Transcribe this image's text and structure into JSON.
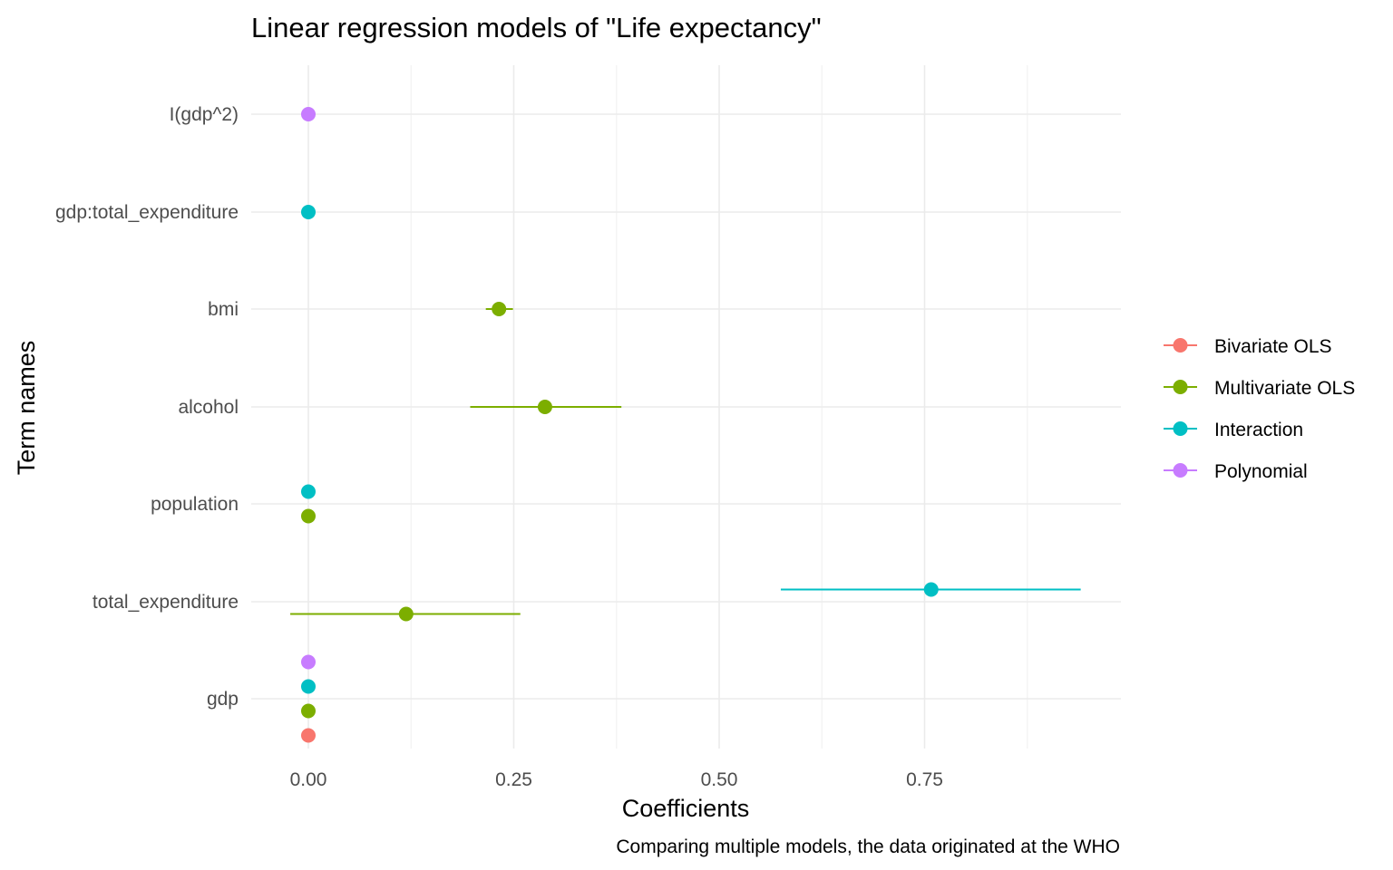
{
  "chart_data": {
    "type": "scatter",
    "subtype": "coefficient-plot-with-error-bars",
    "title": "Linear regression models of \"Life expectancy\"",
    "xlabel": "Coefficients",
    "ylabel": "Term names",
    "caption": "Comparing multiple models, the data originated at the WHO",
    "xlim": [
      -0.07,
      0.985
    ],
    "x_ticks": [
      "0.00",
      "0.25",
      "0.50",
      "0.75"
    ],
    "x_tick_values": [
      0,
      0.25,
      0.5,
      0.75
    ],
    "categories": [
      "gdp",
      "total_expenditure",
      "population",
      "alcohol",
      "bmi",
      "gdp:total_expenditure",
      "I(gdp^2)"
    ],
    "grid": true,
    "legend_position": "right",
    "series": [
      {
        "name": "Bivariate OLS",
        "color": "#F8766D",
        "points": [
          {
            "term": "gdp",
            "estimate": 0.0,
            "low": 0.0,
            "high": 0.0
          }
        ]
      },
      {
        "name": "Multivariate OLS",
        "color": "#7CAE00",
        "points": [
          {
            "term": "gdp",
            "estimate": 0.0,
            "low": 0.0,
            "high": 0.0
          },
          {
            "term": "total_expenditure",
            "estimate": 0.119,
            "low": -0.022,
            "high": 0.258
          },
          {
            "term": "population",
            "estimate": 0.0,
            "low": 0.0,
            "high": 0.0
          },
          {
            "term": "alcohol",
            "estimate": 0.288,
            "low": 0.197,
            "high": 0.381
          },
          {
            "term": "bmi",
            "estimate": 0.232,
            "low": 0.216,
            "high": 0.249
          }
        ]
      },
      {
        "name": "Interaction",
        "color": "#00BFC4",
        "points": [
          {
            "term": "gdp",
            "estimate": 0.0,
            "low": 0.0,
            "high": 0.0
          },
          {
            "term": "total_expenditure",
            "estimate": 0.758,
            "low": 0.575,
            "high": 0.94
          },
          {
            "term": "population",
            "estimate": 0.0,
            "low": 0.0,
            "high": 0.0
          },
          {
            "term": "gdp:total_expenditure",
            "estimate": 0.0,
            "low": 0.0,
            "high": 0.0
          }
        ]
      },
      {
        "name": "Polynomial",
        "color": "#C77CFF",
        "points": [
          {
            "term": "gdp",
            "estimate": 0.0,
            "low": 0.0,
            "high": 0.0
          },
          {
            "term": "I(gdp^2)",
            "estimate": 0.0,
            "low": 0.0,
            "high": 0.0
          }
        ]
      }
    ]
  }
}
